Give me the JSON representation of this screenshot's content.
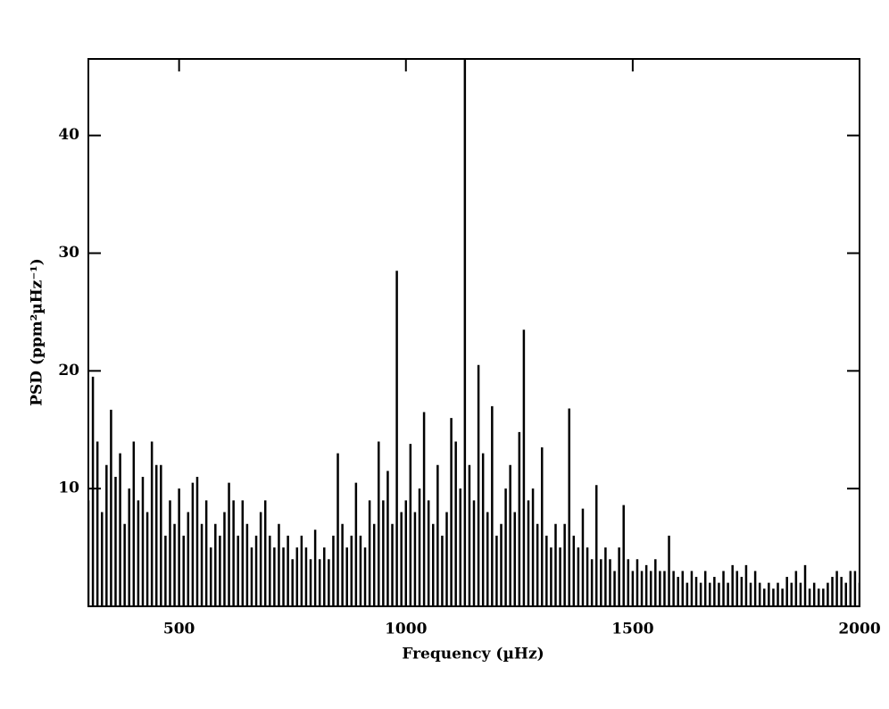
{
  "chart_data": {
    "type": "spectrum",
    "x_label": "Frequency (µHz)",
    "y_label": "PSD (ppm²µHz⁻¹)",
    "color": "#000000",
    "xlim": [
      300,
      2000
    ],
    "ylim": [
      0,
      46.5
    ],
    "xticks": [
      500,
      1000,
      1500,
      2000
    ],
    "yticks": [
      10,
      20,
      30,
      40
    ],
    "x": [
      300,
      310,
      320,
      330,
      340,
      350,
      360,
      370,
      380,
      390,
      400,
      410,
      420,
      430,
      440,
      450,
      460,
      470,
      480,
      490,
      500,
      510,
      520,
      530,
      540,
      550,
      560,
      570,
      580,
      590,
      600,
      610,
      620,
      630,
      640,
      650,
      660,
      670,
      680,
      690,
      700,
      710,
      720,
      730,
      740,
      750,
      760,
      770,
      780,
      790,
      800,
      810,
      820,
      830,
      840,
      850,
      860,
      870,
      880,
      890,
      900,
      910,
      920,
      930,
      940,
      950,
      960,
      970,
      980,
      990,
      1000,
      1010,
      1020,
      1030,
      1040,
      1050,
      1060,
      1070,
      1080,
      1090,
      1100,
      1110,
      1120,
      1130,
      1140,
      1150,
      1160,
      1170,
      1180,
      1190,
      1200,
      1210,
      1220,
      1230,
      1240,
      1250,
      1260,
      1270,
      1280,
      1290,
      1300,
      1310,
      1320,
      1330,
      1340,
      1350,
      1360,
      1370,
      1380,
      1390,
      1400,
      1410,
      1420,
      1430,
      1440,
      1450,
      1460,
      1470,
      1480,
      1490,
      1500,
      1510,
      1520,
      1530,
      1540,
      1550,
      1560,
      1570,
      1580,
      1590,
      1600,
      1610,
      1620,
      1630,
      1640,
      1650,
      1660,
      1670,
      1680,
      1690,
      1700,
      1710,
      1720,
      1730,
      1740,
      1750,
      1760,
      1770,
      1780,
      1790,
      1800,
      1810,
      1820,
      1830,
      1840,
      1850,
      1860,
      1870,
      1880,
      1890,
      1900,
      1910,
      1920,
      1930,
      1940,
      1950,
      1960,
      1970,
      1980,
      1990,
      2000
    ],
    "values": [
      9,
      19.5,
      14,
      8,
      12,
      16.7,
      11,
      13,
      7,
      10,
      14,
      9,
      11,
      8,
      14,
      12,
      12,
      6,
      9,
      7,
      10,
      6,
      8,
      10.5,
      11,
      7,
      9,
      5,
      7,
      6,
      8,
      10.5,
      9,
      6,
      9,
      7,
      5,
      6,
      8,
      9,
      6,
      5,
      7,
      5,
      6,
      4,
      5,
      6,
      5,
      4,
      6.5,
      4,
      5,
      4,
      6,
      13,
      7,
      5,
      6,
      10.5,
      6,
      5,
      9,
      7,
      14,
      9,
      11.5,
      7,
      28.5,
      8,
      9,
      13.8,
      8,
      10,
      16.5,
      9,
      7,
      12,
      6,
      8,
      16,
      14,
      10,
      48,
      12,
      9,
      20.5,
      13,
      8,
      17,
      6,
      7,
      10,
      12,
      8,
      14.8,
      23.5,
      9,
      10,
      7,
      13.5,
      6,
      5,
      7,
      5,
      7,
      16.8,
      6,
      5,
      8.3,
      5,
      4,
      10.3,
      4,
      5,
      4,
      3,
      5,
      8.6,
      4,
      3,
      4,
      3,
      3.5,
      3,
      4,
      3,
      3,
      6,
      3,
      2.5,
      3,
      2,
      3,
      2.5,
      2,
      3,
      2,
      2.5,
      2,
      3,
      2,
      3.5,
      3,
      2.5,
      3.5,
      2,
      3,
      2,
      1.5,
      2,
      1.5,
      2,
      1.5,
      2.5,
      2,
      3,
      2,
      3.5,
      1.5,
      2,
      1.5,
      1.5,
      2,
      2.5,
      3,
      2.5,
      2,
      3,
      3,
      2
    ]
  }
}
